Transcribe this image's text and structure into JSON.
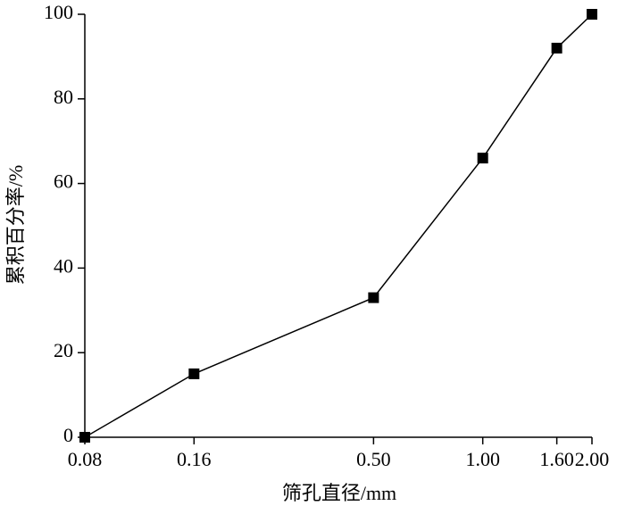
{
  "chart_data": {
    "type": "line",
    "x_label": "筛孔直径/mm",
    "y_label": "累积百分率/%",
    "x": [
      0.08,
      0.16,
      0.5,
      1.0,
      1.6,
      2.0
    ],
    "series": [
      {
        "color": "#000000",
        "values": [
          0,
          15,
          33,
          66,
          92,
          100
        ]
      }
    ],
    "xscale": "log",
    "xlim": [
      0.08,
      2.0
    ],
    "xticks": [
      0.08,
      0.16,
      {
        "value": 0.5,
        "label": "0.50"
      },
      {
        "value": 1.0,
        "label": "1.00"
      },
      {
        "value": 1.6,
        "label": "1.60"
      },
      {
        "value": 2.0,
        "label": "2.00"
      }
    ],
    "ylim": [
      0,
      100
    ],
    "yticks": [
      0,
      20,
      40,
      60,
      80,
      100
    ],
    "grid": false,
    "marker": "square"
  }
}
